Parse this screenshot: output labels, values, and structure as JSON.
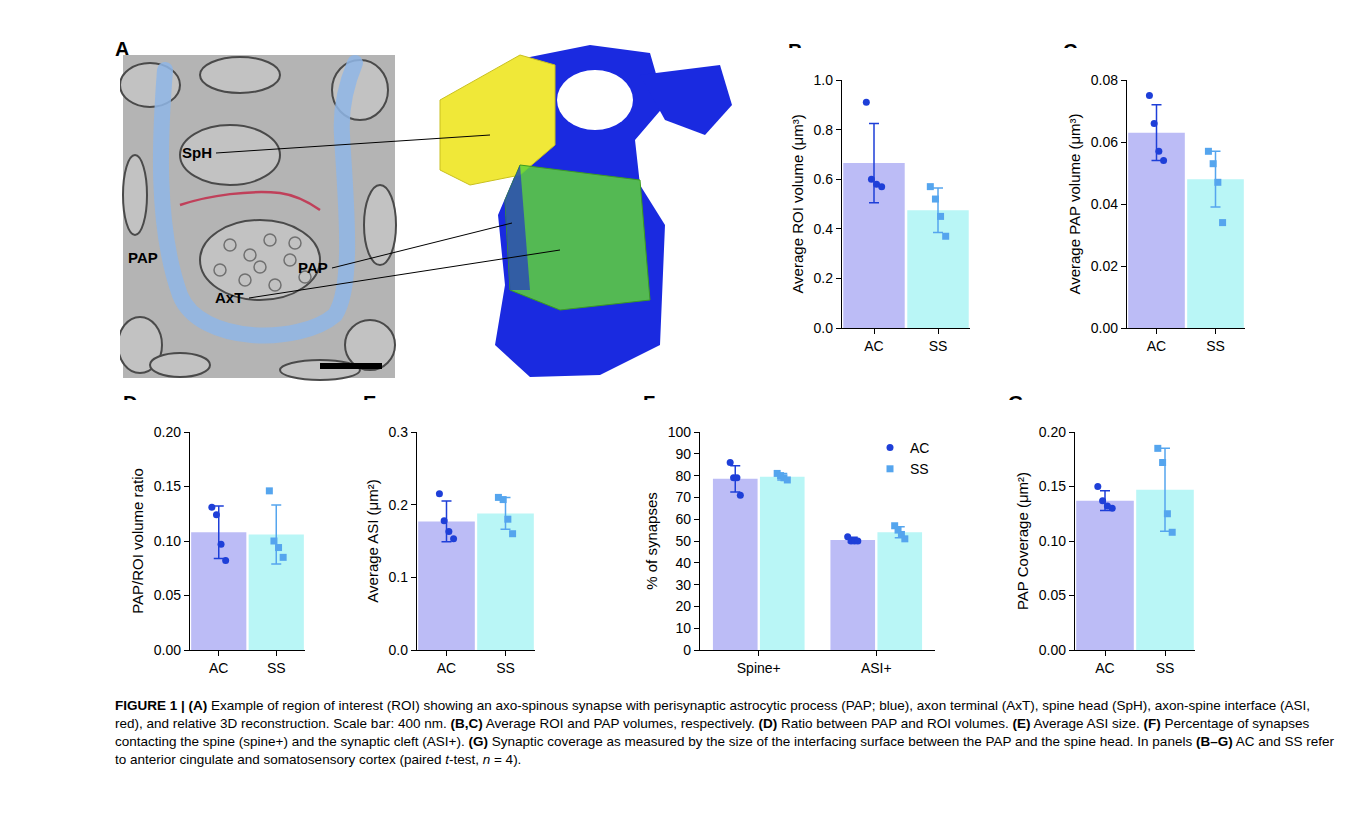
{
  "panel_a": {
    "letter": "A",
    "labels": [
      "SpH",
      "PAP",
      "PAP",
      "AxT"
    ]
  },
  "chart_data": [
    {
      "panel": "B",
      "type": "bar",
      "categories": [
        "AC",
        "SS"
      ],
      "values": [
        0.665,
        0.475
      ],
      "error": [
        0.16,
        0.09
      ],
      "colors": [
        "#bcbcf6",
        "#b9f6f6"
      ],
      "points": [
        {
          "values": [
            0.91,
            0.6,
            0.58,
            0.57
          ],
          "color": "#1e3fd8",
          "marker": "circle"
        },
        {
          "values": [
            0.57,
            0.52,
            0.45,
            0.37
          ],
          "color": "#55a5ee",
          "marker": "square"
        }
      ],
      "ylabel": "Average ROI volume (μm³)",
      "ylim": [
        0,
        1.0
      ],
      "yticks": [
        {
          "value": 0,
          "label": "0.0"
        },
        0.2,
        0.4,
        0.6,
        0.8,
        {
          "value": 1,
          "label": "1.0"
        }
      ],
      "grid": false
    },
    {
      "panel": "C",
      "type": "bar",
      "categories": [
        "AC",
        "SS"
      ],
      "values": [
        0.063,
        0.048
      ],
      "error": [
        0.009,
        0.009
      ],
      "colors": [
        "#bcbcf6",
        "#b9f6f6"
      ],
      "points": [
        {
          "values": [
            0.075,
            0.066,
            0.057,
            0.054
          ],
          "color": "#1e3fd8",
          "marker": "circle"
        },
        {
          "values": [
            0.057,
            0.053,
            0.047,
            0.034
          ],
          "color": "#55a5ee",
          "marker": "square"
        }
      ],
      "ylabel": "Average PAP volume (μm³)",
      "ylim": [
        0,
        0.08
      ],
      "yticks": [
        {
          "value": 0,
          "label": "0.00"
        },
        0.02,
        0.04,
        0.06,
        0.08
      ],
      "grid": false
    },
    {
      "panel": "D",
      "type": "bar",
      "categories": [
        "AC",
        "SS"
      ],
      "values": [
        0.108,
        0.106
      ],
      "error": [
        0.024,
        0.027
      ],
      "colors": [
        "#bcbcf6",
        "#b9f6f6"
      ],
      "points": [
        {
          "values": [
            0.131,
            0.124,
            0.097,
            0.082
          ],
          "color": "#1e3fd8",
          "marker": "circle"
        },
        {
          "values": [
            0.146,
            0.1,
            0.094,
            0.085
          ],
          "color": "#55a5ee",
          "marker": "square"
        }
      ],
      "ylabel": "PAP/ROI volume ratio",
      "ylim": [
        0,
        0.2
      ],
      "yticks": [
        {
          "value": 0,
          "label": "0.00"
        },
        0.05,
        {
          "value": 0.1,
          "label": "0.10"
        },
        0.15,
        {
          "value": 0.2,
          "label": "0.20"
        }
      ],
      "grid": false
    },
    {
      "panel": "E",
      "type": "bar",
      "categories": [
        "AC",
        "SS"
      ],
      "values": [
        0.177,
        0.188
      ],
      "error": [
        0.028,
        0.022
      ],
      "colors": [
        "#bcbcf6",
        "#b9f6f6"
      ],
      "points": [
        {
          "values": [
            0.215,
            0.178,
            0.163,
            0.153
          ],
          "color": "#1e3fd8",
          "marker": "circle"
        },
        {
          "values": [
            0.21,
            0.207,
            0.18,
            0.16
          ],
          "color": "#55a5ee",
          "marker": "square"
        }
      ],
      "ylabel": "Average ASI (μm²)",
      "ylim": [
        0,
        0.3
      ],
      "yticks": [
        {
          "value": 0,
          "label": "0.0"
        },
        0.1,
        0.2,
        0.3
      ],
      "grid": false
    },
    {
      "panel": "F",
      "type": "bar",
      "categories": [
        "Spine+",
        "ASI+"
      ],
      "series": [
        {
          "name": "AC",
          "values": [
            78.5,
            50.5
          ],
          "error": [
            6,
            1.2
          ],
          "color": "#bcbcf6",
          "points": {
            "values": [
              [
                86,
                79,
                79,
                71
              ],
              [
                52,
                50,
                50,
                50
              ]
            ],
            "color": "#1e3fd8",
            "marker": "circle"
          }
        },
        {
          "name": "SS",
          "values": [
            79.5,
            54
          ],
          "error": [
            1.5,
            2.5
          ],
          "color": "#b9f6f6",
          "points": {
            "values": [
              [
                81,
                80,
                79,
                78
              ],
              [
                57,
                55,
                53,
                51
              ]
            ],
            "color": "#55a5ee",
            "marker": "square"
          }
        }
      ],
      "ylabel": "% of synapses",
      "ylim": [
        0,
        100
      ],
      "yticks": [
        0,
        10,
        20,
        30,
        40,
        50,
        60,
        70,
        80,
        90,
        100
      ],
      "legend": "upper right",
      "grid": false
    },
    {
      "panel": "G",
      "type": "bar",
      "categories": [
        "AC",
        "SS"
      ],
      "values": [
        0.137,
        0.147
      ],
      "error": [
        0.009,
        0.038
      ],
      "colors": [
        "#bcbcf6",
        "#b9f6f6"
      ],
      "points": [
        {
          "values": [
            0.15,
            0.137,
            0.132,
            0.13
          ],
          "color": "#1e3fd8",
          "marker": "circle"
        },
        {
          "values": [
            0.185,
            0.172,
            0.125,
            0.108
          ],
          "color": "#55a5ee",
          "marker": "square"
        }
      ],
      "ylabel": "PAP Coverage (μm²)",
      "ylim": [
        0,
        0.2
      ],
      "yticks": [
        {
          "value": 0,
          "label": "0.00"
        },
        0.05,
        {
          "value": 0.1,
          "label": "0.10"
        },
        0.15,
        {
          "value": 0.2,
          "label": "0.20"
        }
      ],
      "grid": false
    }
  ],
  "caption": [
    {
      "text": "FIGURE 1 | ",
      "style": "bold"
    },
    {
      "text": "(A)",
      "style": "bold"
    },
    {
      "text": " Example of region of interest (ROI) showing an axo-spinous synapse with perisynaptic astrocytic process (PAP; blue), axon terminal (AxT), spine head (SpH), axon-spine interface (ASI, red), and relative 3D reconstruction. Scale bar: 400 nm. ",
      "style": "plain"
    },
    {
      "text": "(B,C)",
      "style": "bold"
    },
    {
      "text": " Average ROI and PAP volumes, respectively. ",
      "style": "plain"
    },
    {
      "text": "(D)",
      "style": "bold"
    },
    {
      "text": " Ratio between PAP and ROI volumes. ",
      "style": "plain"
    },
    {
      "text": "(E)",
      "style": "bold"
    },
    {
      "text": " Average ASI size. ",
      "style": "plain"
    },
    {
      "text": "(F)",
      "style": "bold"
    },
    {
      "text": " Percentage of synapses contacting the spine (spine+) and the synaptic cleft (ASI+). ",
      "style": "plain"
    },
    {
      "text": "(G)",
      "style": "bold"
    },
    {
      "text": " Synaptic coverage as measured by the size of the interfacing surface between the PAP and the spine head. In panels ",
      "style": "plain"
    },
    {
      "text": "(B–G)",
      "style": "bold"
    },
    {
      "text": " AC and SS refer to anterior cingulate and somatosensory cortex (paired ",
      "style": "plain"
    },
    {
      "text": "t",
      "style": "italic"
    },
    {
      "text": "-test, ",
      "style": "plain"
    },
    {
      "text": "n",
      "style": "italic"
    },
    {
      "text": " = 4).",
      "style": "plain"
    }
  ]
}
